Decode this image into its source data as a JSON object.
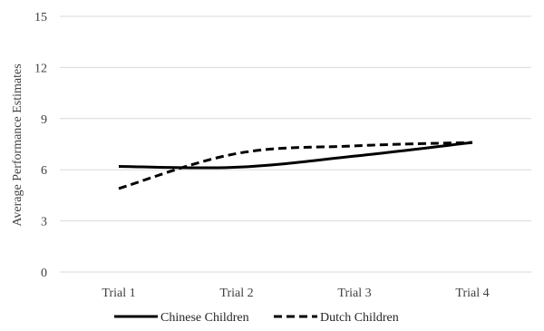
{
  "chart_data": {
    "type": "line",
    "categories": [
      "Trial 1",
      "Trial 2",
      "Trial 3",
      "Trial 4"
    ],
    "series": [
      {
        "name": "Chinese Children",
        "values": [
          6.2,
          6.15,
          6.8,
          7.6
        ],
        "color": "#000000",
        "dash": "solid"
      },
      {
        "name": "Dutch Children",
        "values": [
          4.9,
          6.95,
          7.4,
          7.6
        ],
        "color": "#000000",
        "dash": "dashed"
      }
    ],
    "ylabel": "Average Performance Estimates",
    "yticks": [
      "0",
      "3",
      "6",
      "9",
      "12",
      "15"
    ],
    "ylim": [
      0,
      15
    ],
    "grid": true,
    "legend_position": "bottom"
  }
}
